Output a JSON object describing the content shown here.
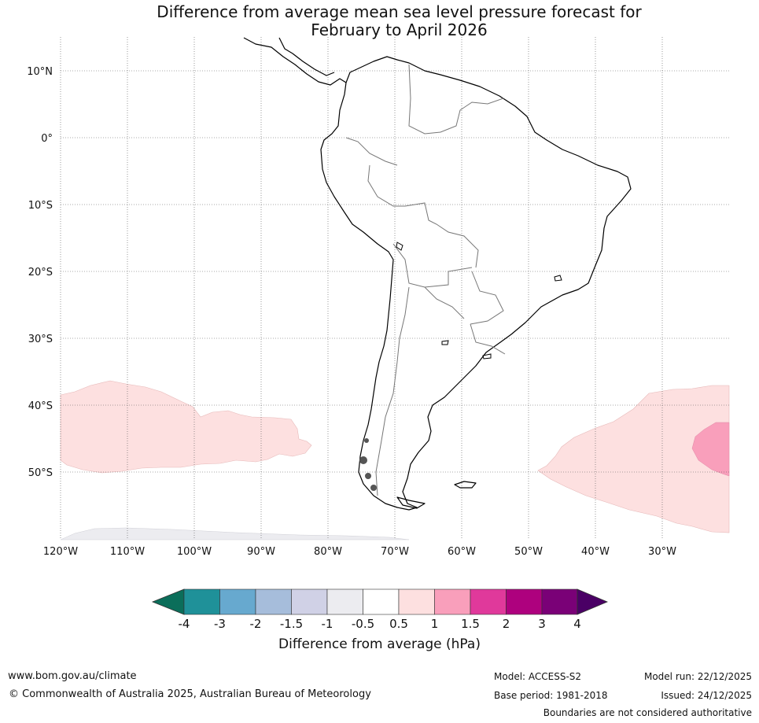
{
  "title_line1": "Difference from average mean sea level pressure forecast for",
  "title_line2": "February to April 2026",
  "map": {
    "lat_labels": [
      "10°N",
      "0°",
      "10°S",
      "20°S",
      "30°S",
      "40°S",
      "50°S"
    ],
    "lon_labels": [
      "120°W",
      "110°W",
      "100°W",
      "90°W",
      "80°W",
      "70°W",
      "60°W",
      "50°W",
      "40°W",
      "30°W"
    ]
  },
  "colorbar": {
    "colors": [
      "#0b6e5a",
      "#1f9199",
      "#67a9cf",
      "#a6bddb",
      "#d0d1e6",
      "#ececf0",
      "#ffffff",
      "#fde0e0",
      "#f99fbb",
      "#e0399b",
      "#ae017e",
      "#7a0177",
      "#4a0065"
    ],
    "ticks": [
      "-4",
      "-3",
      "-2",
      "-1.5",
      "-1",
      "-0.5",
      "0.5",
      "1",
      "1.5",
      "2",
      "3",
      "4"
    ],
    "label": "Difference from average (hPa)"
  },
  "footer": {
    "website": "www.bom.gov.au/climate",
    "copyright": "© Commonwealth of Australia 2025, Australian Bureau of Meteorology",
    "model": "Model: ACCESS-S2",
    "base_period": "Base period: 1981-2018",
    "model_run": "Model run: 22/12/2025",
    "issued": "Issued: 24/12/2025",
    "disclaimer": "Boundaries are not considered authoritative"
  }
}
